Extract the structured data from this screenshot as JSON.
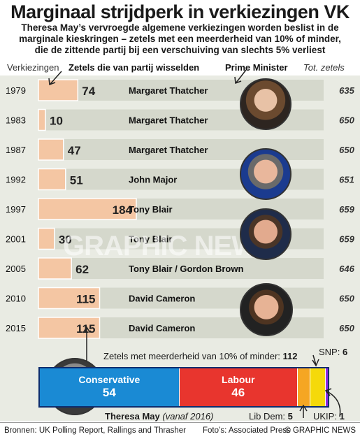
{
  "title": "Marginaal strijdperk in verkiezingen VK",
  "subtitle_lines": [
    "Theresa May’s vervroegde algemene verkiezingen worden beslist in de",
    "marginale kieskringen – zetels met een meerderheid van 10% of minder,",
    "die de zittende partij bij een verschuiving van slechts 5% verliest"
  ],
  "headers": {
    "verkiezingen": "Verkiezingen",
    "zetels": "Zetels die van partij wisselden",
    "pm": "Prime Minister",
    "tot": "Tot. zetels"
  },
  "chart_data": {
    "type": "bar",
    "x_label": "Verkiezingen",
    "series_name": "Zetels die van partij wisselden",
    "categories": [
      "1979",
      "1983",
      "1987",
      "1992",
      "1997",
      "2001",
      "2005",
      "2010",
      "2015"
    ],
    "values": [
      74,
      10,
      47,
      51,
      184,
      30,
      62,
      115,
      115
    ],
    "total_seats": [
      635,
      650,
      650,
      651,
      659,
      659,
      646,
      650,
      650
    ],
    "prime_ministers": [
      "Margaret Thatcher",
      "Margaret Thatcher",
      "Margaret Thatcher",
      "John Major",
      "Tony Blair",
      "Tony Blair",
      "Tony Blair / Gordon Brown",
      "David Cameron",
      "David Cameron"
    ],
    "colors": {
      "bar": "#f4c6a3",
      "bar_outline": "#ffffff",
      "track": "#d5d8cc"
    }
  },
  "seat_breakdown": {
    "label": "Zetels met meerderheid van 10% of minder:",
    "total": "112",
    "segments": [
      {
        "name": "Conservative",
        "value": 54,
        "color": "#1a8ad4"
      },
      {
        "name": "Labour",
        "value": 46,
        "color": "#e8352e"
      },
      {
        "name": "Lib Dem",
        "value": 5,
        "color": "#f5a623"
      },
      {
        "name": "SNP",
        "value": 6,
        "color": "#f5d90a"
      },
      {
        "name": "UKIP",
        "value": 1,
        "color": "#8a2be2"
      }
    ],
    "lib_dem_label": "Lib Dem:",
    "lib_dem_value": "5",
    "snp_label": "SNP:",
    "snp_value": "6",
    "ukip_label": "UKIP:",
    "ukip_value": "1",
    "may_name": "Theresa May",
    "may_note": "(vanaf 2016)"
  },
  "footer": {
    "sources": "Bronnen: UK Polling Report, Rallings and Thrasher",
    "photos": "Foto’s: Associated Press",
    "credit": "© GRAPHIC NEWS"
  },
  "watermark": "GRAPHIC NEWS"
}
